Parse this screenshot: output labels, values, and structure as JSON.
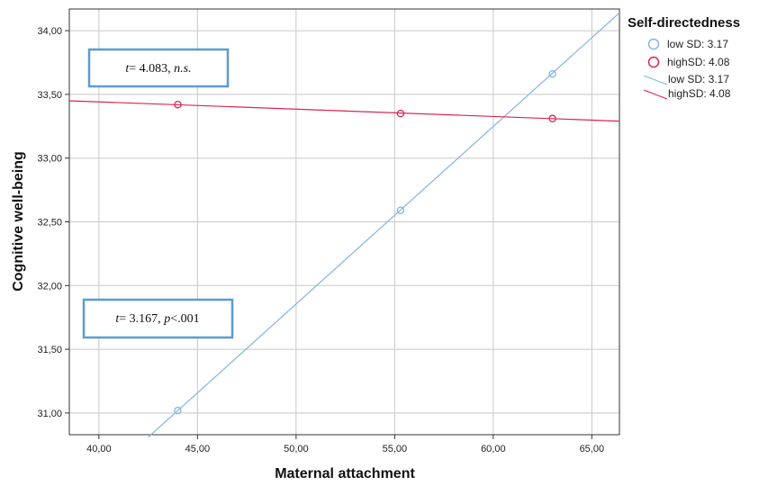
{
  "chart_data": {
    "type": "line",
    "xlabel": "Maternal attachment",
    "ylabel": "Cognitive well-being",
    "xlim": [
      38.5,
      66.4
    ],
    "ylim": [
      30.83,
      34.17
    ],
    "x_ticks": [
      "40,00",
      "45,00",
      "50,00",
      "55,00",
      "60,00",
      "65,00"
    ],
    "y_ticks": [
      "31,00",
      "31,50",
      "32,00",
      "32,50",
      "33,00",
      "33,50",
      "34,00"
    ],
    "grid": true,
    "legend": {
      "title": "Self-directedness",
      "placement": "top-right",
      "entries": [
        "low SD: 3.17",
        "highSD: 4.08",
        "low SD: 3.17",
        "highSD: 4.08"
      ]
    },
    "series": [
      {
        "name": "low SD: 3.17",
        "color": "#82b4e3",
        "points": {
          "x": [
            44.0,
            55.3,
            63.0
          ],
          "y": [
            31.02,
            32.59,
            33.66
          ]
        },
        "fit_line": {
          "x": [
            42.5,
            66.4
          ],
          "y": [
            30.81,
            34.14
          ]
        }
      },
      {
        "name": "highSD: 4.08",
        "color": "#d9264f",
        "points": {
          "x": [
            44.0,
            55.3,
            63.0
          ],
          "y": [
            33.42,
            33.35,
            33.31
          ]
        },
        "fit_line": {
          "x": [
            38.5,
            66.4
          ],
          "y": [
            33.45,
            33.29
          ]
        }
      }
    ],
    "annotations": [
      {
        "t_label": "t",
        "value": "= 4.083,",
        "sig": "n.s.",
        "border_color": "#5b9bd5"
      },
      {
        "t_label": "t",
        "value": "= 3.167,",
        "p_label": "p",
        "sig": "<.001",
        "border_color": "#5b9bd5"
      }
    ]
  }
}
